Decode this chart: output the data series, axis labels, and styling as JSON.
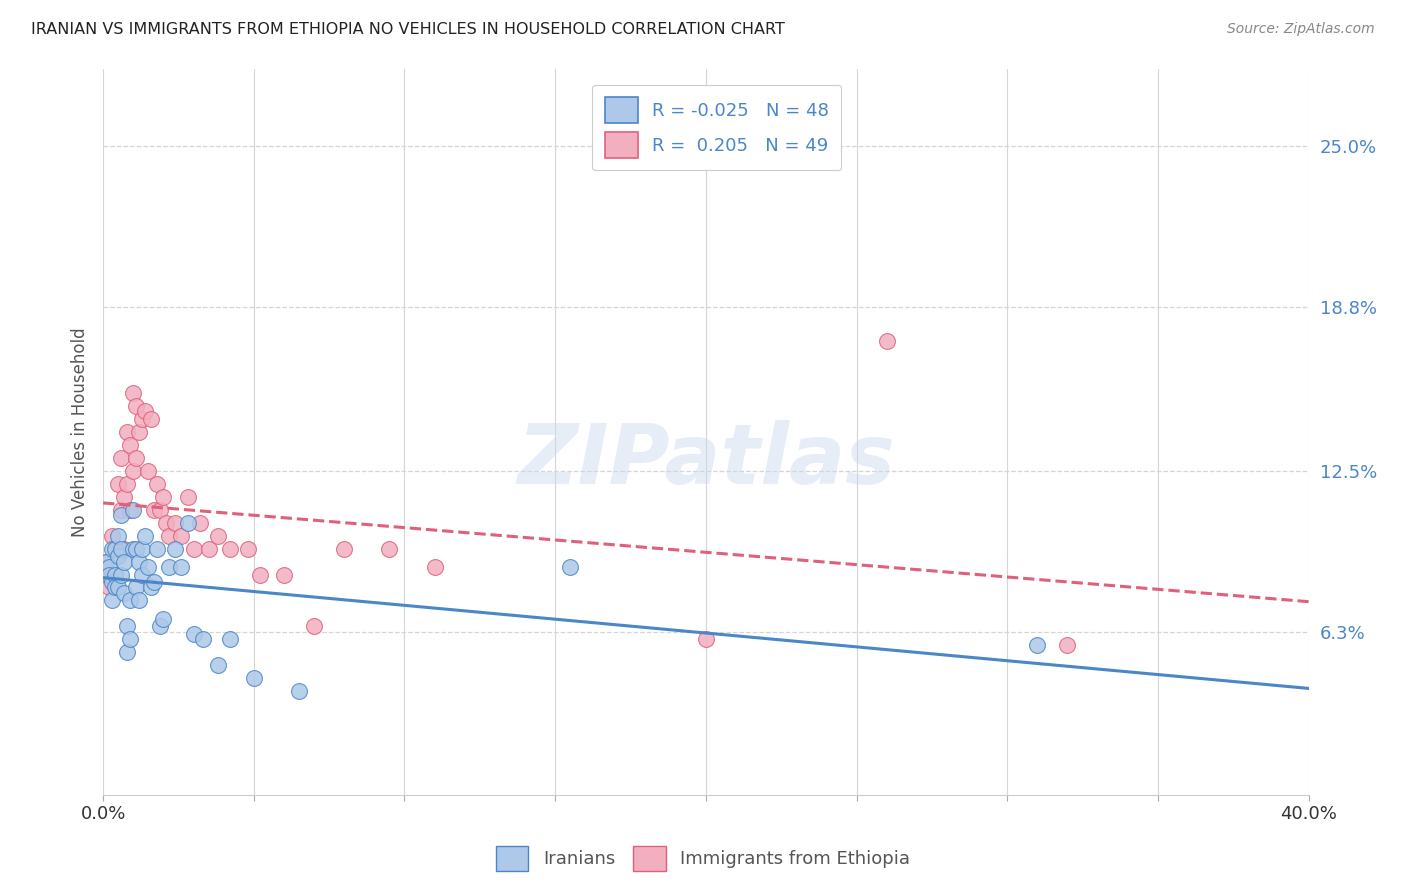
{
  "title": "IRANIAN VS IMMIGRANTS FROM ETHIOPIA NO VEHICLES IN HOUSEHOLD CORRELATION CHART",
  "source": "Source: ZipAtlas.com",
  "ylabel": "No Vehicles in Household",
  "xlim": [
    0.0,
    0.4
  ],
  "ylim": [
    0.0,
    0.28
  ],
  "ytick_vals": [
    0.063,
    0.125,
    0.188,
    0.25
  ],
  "ytick_labels": [
    "6.3%",
    "12.5%",
    "18.8%",
    "25.0%"
  ],
  "xtick_vals": [
    0.0,
    0.05,
    0.1,
    0.15,
    0.2,
    0.25,
    0.3,
    0.35,
    0.4
  ],
  "xtick_labels": [
    "0.0%",
    "",
    "",
    "",
    "",
    "",
    "",
    "",
    "40.0%"
  ],
  "watermark": "ZIPatlas",
  "color_iranian": "#adc8e8",
  "color_ethiopia": "#f2afc0",
  "line_color_iranian": "#4a86c8",
  "line_color_ethiopia": "#e0607a",
  "background_color": "#ffffff",
  "grid_color": "#d5d5d5",
  "legend_label1": "R = -0.025   N = 48",
  "legend_label2": "R =  0.205   N = 49",
  "iranians_x": [
    0.001,
    0.002,
    0.002,
    0.003,
    0.003,
    0.003,
    0.004,
    0.004,
    0.004,
    0.005,
    0.005,
    0.005,
    0.006,
    0.006,
    0.006,
    0.007,
    0.007,
    0.008,
    0.008,
    0.009,
    0.009,
    0.01,
    0.01,
    0.011,
    0.011,
    0.012,
    0.012,
    0.013,
    0.013,
    0.014,
    0.015,
    0.016,
    0.017,
    0.018,
    0.019,
    0.02,
    0.022,
    0.024,
    0.026,
    0.028,
    0.03,
    0.033,
    0.038,
    0.042,
    0.05,
    0.065,
    0.155,
    0.31
  ],
  "iranians_y": [
    0.09,
    0.088,
    0.085,
    0.095,
    0.082,
    0.075,
    0.095,
    0.085,
    0.08,
    0.1,
    0.092,
    0.08,
    0.108,
    0.095,
    0.085,
    0.09,
    0.078,
    0.065,
    0.055,
    0.075,
    0.06,
    0.11,
    0.095,
    0.095,
    0.08,
    0.09,
    0.075,
    0.095,
    0.085,
    0.1,
    0.088,
    0.08,
    0.082,
    0.095,
    0.065,
    0.068,
    0.088,
    0.095,
    0.088,
    0.105,
    0.062,
    0.06,
    0.05,
    0.06,
    0.045,
    0.04,
    0.088,
    0.058
  ],
  "ethiopia_x": [
    0.001,
    0.002,
    0.003,
    0.003,
    0.004,
    0.004,
    0.005,
    0.005,
    0.006,
    0.006,
    0.007,
    0.007,
    0.008,
    0.008,
    0.009,
    0.009,
    0.01,
    0.01,
    0.011,
    0.011,
    0.012,
    0.013,
    0.014,
    0.015,
    0.016,
    0.017,
    0.018,
    0.019,
    0.02,
    0.021,
    0.022,
    0.024,
    0.026,
    0.028,
    0.03,
    0.032,
    0.035,
    0.038,
    0.042,
    0.048,
    0.052,
    0.06,
    0.07,
    0.08,
    0.095,
    0.11,
    0.2,
    0.26,
    0.32
  ],
  "ethiopia_y": [
    0.09,
    0.08,
    0.1,
    0.085,
    0.095,
    0.085,
    0.12,
    0.095,
    0.13,
    0.11,
    0.115,
    0.095,
    0.14,
    0.12,
    0.135,
    0.11,
    0.155,
    0.125,
    0.15,
    0.13,
    0.14,
    0.145,
    0.148,
    0.125,
    0.145,
    0.11,
    0.12,
    0.11,
    0.115,
    0.105,
    0.1,
    0.105,
    0.1,
    0.115,
    0.095,
    0.105,
    0.095,
    0.1,
    0.095,
    0.095,
    0.085,
    0.085,
    0.065,
    0.095,
    0.095,
    0.088,
    0.06,
    0.175,
    0.058
  ]
}
